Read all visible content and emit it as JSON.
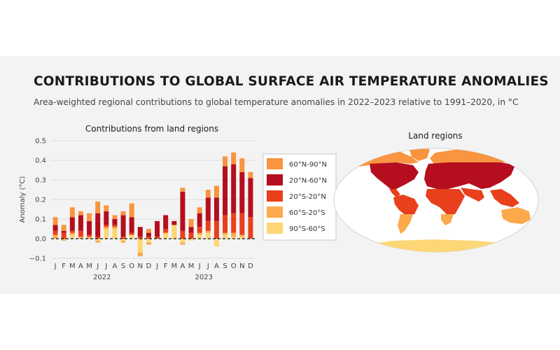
{
  "title": "CONTRIBUTIONS TO GLOBAL SURFACE AIR TEMPERATURE ANOMALIES",
  "subtitle": "Area-weighted regional contributions to global temperature anomalies in 2022–2023 relative to 1991–2020, in °C",
  "map": {
    "title": "Land regions",
    "region_colors": {
      "60N_90N": "#f99540",
      "20N_60N": "#b50e1e",
      "20S_20N": "#e8401c",
      "60S_20S": "#fba94b",
      "90S_60S": "#fdd775"
    }
  },
  "chart_data": {
    "type": "bar",
    "stacked": true,
    "title": "Contributions from land regions",
    "ylabel": "Anomaly (°C)",
    "xlabel": "",
    "ylim": [
      -0.1,
      0.5
    ],
    "yticks": [
      "−0.1",
      "0.0",
      "0.1",
      "0.2",
      "0.3",
      "0.4",
      "0.5"
    ],
    "yticks_values": [
      -0.1,
      0.0,
      0.1,
      0.2,
      0.3,
      0.4,
      0.5
    ],
    "grid": "horizontal",
    "zero_line": "dashed",
    "legend_position": "right",
    "categories": [
      "J",
      "F",
      "M",
      "A",
      "M",
      "J",
      "J",
      "A",
      "S",
      "O",
      "N",
      "D",
      "J",
      "F",
      "M",
      "A",
      "M",
      "J",
      "J",
      "A",
      "S",
      "O",
      "N",
      "D"
    ],
    "years": [
      {
        "label": "2022",
        "span": [
          0,
          11
        ]
      },
      {
        "label": "2023",
        "span": [
          12,
          23
        ]
      }
    ],
    "series": [
      {
        "name": "90°S-60°S",
        "color": "#fdd775",
        "values": [
          0.0,
          0.0,
          0.02,
          0.0,
          0.0,
          -0.01,
          0.05,
          0.05,
          -0.01,
          0.02,
          -0.07,
          -0.02,
          0.0,
          0.03,
          0.07,
          -0.02,
          -0.01,
          0.02,
          0.03,
          -0.04,
          0.02,
          0.01,
          0.01,
          0.0
        ]
      },
      {
        "name": "60°S-20°S",
        "color": "#fba94b",
        "values": [
          0.02,
          -0.01,
          0.01,
          0.01,
          0.01,
          -0.01,
          0.01,
          0.01,
          -0.01,
          0.0,
          -0.02,
          -0.01,
          0.0,
          0.0,
          0.0,
          -0.01,
          0.0,
          0.01,
          0.01,
          0.0,
          0.01,
          0.02,
          0.01,
          0.0
        ]
      },
      {
        "name": "20°S-20°N",
        "color": "#e8401c",
        "values": [
          0.02,
          0.03,
          0.01,
          0.03,
          0.01,
          0.01,
          0.01,
          0.01,
          0.01,
          0.01,
          0.01,
          0.01,
          0.01,
          0.02,
          0.0,
          0.04,
          0.03,
          0.03,
          0.05,
          0.09,
          0.09,
          0.1,
          0.11,
          0.11
        ]
      },
      {
        "name": "20°N-60°N",
        "color": "#b50e1e",
        "values": [
          0.03,
          0.01,
          0.07,
          0.08,
          0.07,
          0.12,
          0.07,
          0.03,
          0.11,
          0.08,
          0.05,
          0.02,
          0.08,
          0.07,
          0.02,
          0.2,
          0.03,
          0.07,
          0.12,
          0.12,
          0.25,
          0.25,
          0.21,
          0.2
        ]
      },
      {
        "name": "60°N-90°N",
        "color": "#f99540",
        "values": [
          0.04,
          0.03,
          0.05,
          0.02,
          0.04,
          0.06,
          0.03,
          0.02,
          0.02,
          0.07,
          0.0,
          0.02,
          0.0,
          0.0,
          0.0,
          0.02,
          0.04,
          0.03,
          0.04,
          0.06,
          0.05,
          0.06,
          0.07,
          0.03
        ]
      }
    ]
  }
}
